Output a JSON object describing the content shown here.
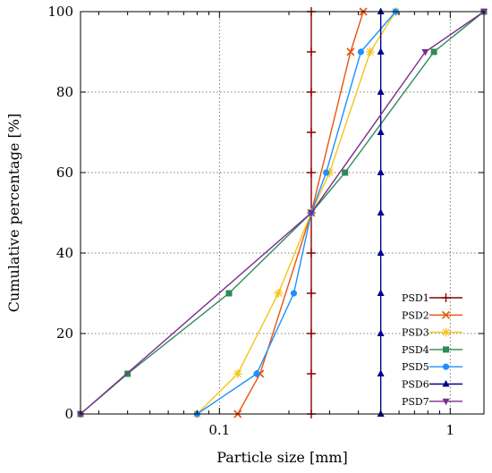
{
  "chart_data": {
    "type": "line",
    "title": "",
    "xlabel": "Particle size [mm]",
    "ylabel": "Cumulative percentage [%]",
    "xscale": "log",
    "xlim": [
      0.025,
      1.4
    ],
    "ylim": [
      0,
      100
    ],
    "xticks": [
      {
        "value": 0.1,
        "label": "0.1"
      },
      {
        "value": 1,
        "label": "1"
      }
    ],
    "yticks": [
      {
        "value": 0,
        "label": "0"
      },
      {
        "value": 20,
        "label": "20"
      },
      {
        "value": 40,
        "label": "40"
      },
      {
        "value": 60,
        "label": "60"
      },
      {
        "value": 80,
        "label": "80"
      },
      {
        "value": 100,
        "label": "100"
      }
    ],
    "grid": true,
    "legend_position": "bottom-right",
    "series": [
      {
        "name": "PSD1",
        "color": "#8b0000",
        "marker": "plus",
        "x": [
          0.25,
          0.25,
          0.25,
          0.25,
          0.25,
          0.25,
          0.25,
          0.25,
          0.25,
          0.25,
          0.25
        ],
        "y": [
          0,
          10,
          20,
          30,
          40,
          50,
          60,
          70,
          80,
          90,
          100
        ]
      },
      {
        "name": "PSD2",
        "color": "#e8540e",
        "marker": "cross",
        "x": [
          0.12,
          0.15,
          0.25,
          0.37,
          0.42
        ],
        "y": [
          0,
          10,
          50,
          90,
          100
        ]
      },
      {
        "name": "PSD3",
        "color": "#f5c518",
        "marker": "star",
        "x": [
          0.08,
          0.12,
          0.18,
          0.25,
          0.3,
          0.45,
          0.58
        ],
        "y": [
          0,
          10,
          30,
          50,
          60,
          90,
          100
        ]
      },
      {
        "name": "PSD4",
        "color": "#2e8b57",
        "marker": "square",
        "x": [
          0.025,
          0.04,
          0.11,
          0.25,
          0.35,
          0.85,
          1.4
        ],
        "y": [
          0,
          10,
          30,
          50,
          60,
          90,
          100
        ]
      },
      {
        "name": "PSD5",
        "color": "#1e90ff",
        "marker": "circle",
        "x": [
          0.08,
          0.145,
          0.21,
          0.25,
          0.29,
          0.41,
          0.58
        ],
        "y": [
          0,
          10,
          30,
          50,
          60,
          90,
          100
        ]
      },
      {
        "name": "PSD6",
        "color": "#00008b",
        "marker": "triangle",
        "x": [
          0.5,
          0.5,
          0.5,
          0.5,
          0.5,
          0.5,
          0.5,
          0.5,
          0.5,
          0.5,
          0.5
        ],
        "y": [
          0,
          10,
          20,
          30,
          40,
          50,
          60,
          70,
          80,
          90,
          100
        ]
      },
      {
        "name": "PSD7",
        "color": "#7b2d8e",
        "marker": "triangle-down",
        "x": [
          0.025,
          0.25,
          0.78,
          1.4
        ],
        "y": [
          0,
          50,
          90,
          100
        ]
      }
    ]
  }
}
